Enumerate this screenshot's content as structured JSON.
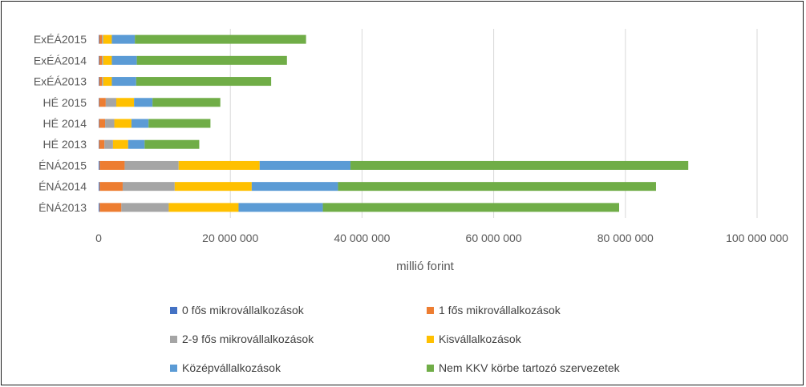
{
  "chart_data": {
    "type": "bar",
    "orientation": "horizontal",
    "stacked": true,
    "xlabel": "millió forint",
    "xlim": [
      0,
      100000000
    ],
    "x_ticks": [
      0,
      20000000,
      40000000,
      60000000,
      80000000,
      100000000
    ],
    "x_tick_labels": [
      "0",
      "20 000 000",
      "40 000 000",
      "60 000 000",
      "80 000 000",
      "100 000 000"
    ],
    "grid": true,
    "legend_position": "bottom",
    "categories": [
      "ExÉÁ2015",
      "ExÉÁ2014",
      "ExÉÁ2013",
      "HÉ 2015",
      "HÉ 2014",
      "HÉ 2013",
      "ÉNÁ2015",
      "ÉNÁ2014",
      "ÉNÁ2013"
    ],
    "series": [
      {
        "name": "0 fős mikrovállalkozások",
        "color": "#4472c4",
        "values": [
          100000,
          100000,
          100000,
          80000,
          80000,
          80000,
          150000,
          150000,
          150000
        ]
      },
      {
        "name": "1 fős mikrovállalkozások",
        "color": "#ed7d31",
        "values": [
          400000,
          400000,
          400000,
          1000000,
          900000,
          800000,
          3800000,
          3500000,
          3300000
        ]
      },
      {
        "name": "2-9 fős mikrovállalkozások",
        "color": "#a5a5a5",
        "values": [
          200000,
          200000,
          200000,
          1600000,
          1400000,
          1300000,
          8200000,
          7900000,
          7200000
        ]
      },
      {
        "name": "Kisvállalkozások",
        "color": "#ffc000",
        "values": [
          1300000,
          1300000,
          1300000,
          2700000,
          2600000,
          2300000,
          12300000,
          11700000,
          10600000
        ]
      },
      {
        "name": "Középvállalkozások",
        "color": "#5b9bd5",
        "values": [
          3500000,
          3800000,
          3700000,
          2800000,
          2600000,
          2500000,
          13800000,
          13100000,
          12800000
        ]
      },
      {
        "name": "Nem KKV körbe tartozó szervezetek",
        "color": "#70ad47",
        "values": [
          26000000,
          22800000,
          20500000,
          10300000,
          9400000,
          8300000,
          51300000,
          48300000,
          45000000
        ]
      }
    ]
  }
}
